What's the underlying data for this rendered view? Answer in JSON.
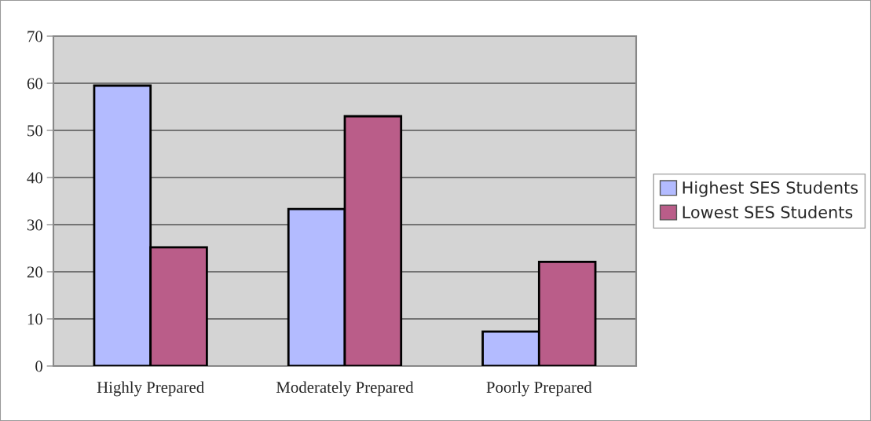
{
  "chart_data": {
    "type": "bar",
    "categories": [
      "Highly Prepared",
      "Moderately Prepared",
      "Poorly Prepared"
    ],
    "series": [
      {
        "name": "Highest SES Students",
        "color": "#b3bbff",
        "values": [
          59.5,
          33.3,
          7.3
        ]
      },
      {
        "name": "Lowest SES Students",
        "color": "#ba5d89",
        "values": [
          25.2,
          53.0,
          22.1
        ]
      }
    ],
    "ylim": [
      0,
      70
    ],
    "yticks": [
      0,
      10,
      20,
      30,
      40,
      50,
      60,
      70
    ],
    "grid": "y",
    "legend": "right"
  }
}
